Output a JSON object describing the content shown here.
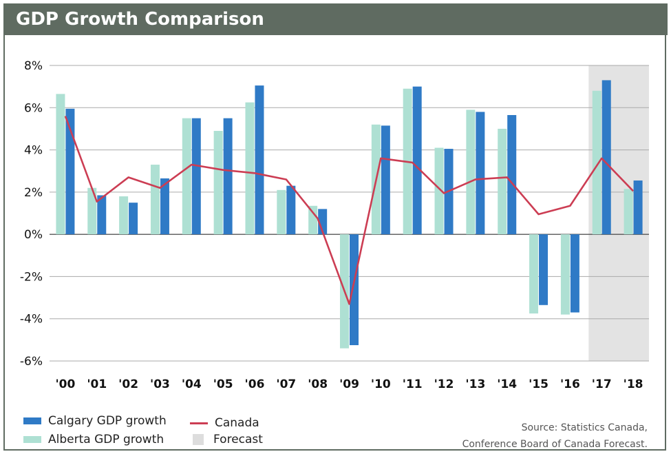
{
  "title": "GDP Growth Comparison",
  "source_lines": [
    "Source: Statistics Canada,",
    "Conference Board of Canada Forecast."
  ],
  "legend": {
    "calgary": "Calgary GDP growth",
    "alberta": "Alberta GDP growth",
    "canada": "Canada",
    "forecast": "Forecast"
  },
  "colors": {
    "header_bg": "#5f6b61",
    "calgary": "#2f7ac6",
    "alberta": "#aee0d3",
    "canada": "#cc3d53",
    "forecast": "#e3e3e3",
    "zero_line": "#555555",
    "grid": "#aaaaaa"
  },
  "chart_data": {
    "type": "bar",
    "categories": [
      "'00",
      "'01",
      "'02",
      "'03",
      "'04",
      "'05",
      "'06",
      "'07",
      "'08",
      "'09",
      "'10",
      "'11",
      "'12",
      "'13",
      "'14",
      "'15",
      "'16",
      "'17",
      "'18"
    ],
    "y_tick_labels": [
      "8%",
      "6%",
      "4%",
      "2%",
      "0%",
      "-2%",
      "-4%",
      "-6%"
    ],
    "ylim": [
      -6,
      8
    ],
    "grid": true,
    "legend_position": "bottom-left",
    "forecast_categories": [
      "'17",
      "'18"
    ],
    "series": [
      {
        "name": "Alberta GDP growth",
        "type": "bar",
        "values": [
          6.65,
          2.2,
          1.8,
          3.3,
          5.5,
          4.9,
          6.25,
          2.1,
          1.35,
          -5.4,
          5.2,
          6.9,
          4.1,
          5.9,
          5.0,
          -3.75,
          -3.8,
          6.8,
          2.15
        ]
      },
      {
        "name": "Calgary GDP growth",
        "type": "bar",
        "values": [
          5.95,
          1.85,
          1.5,
          2.65,
          5.5,
          5.5,
          7.05,
          2.3,
          1.2,
          -5.25,
          5.15,
          7.0,
          4.05,
          5.8,
          5.65,
          -3.35,
          -3.7,
          7.3,
          2.55
        ]
      },
      {
        "name": "Canada",
        "type": "line",
        "values": [
          5.6,
          1.55,
          2.7,
          2.2,
          3.3,
          3.05,
          2.9,
          2.6,
          0.75,
          -3.3,
          3.6,
          3.4,
          1.95,
          2.6,
          2.7,
          0.95,
          1.35,
          3.6,
          2.05
        ]
      }
    ]
  }
}
